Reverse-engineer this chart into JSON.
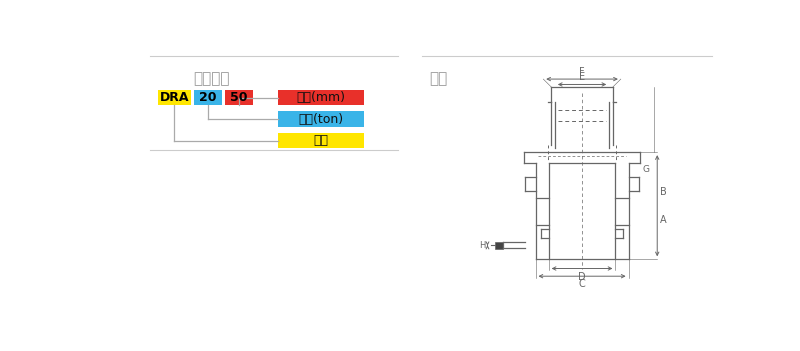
{
  "title_left": "型号说明",
  "title_right": "尺寸",
  "box_labels": [
    "DRA",
    "20",
    "50"
  ],
  "box_colors": [
    "#FFE600",
    "#3AB4E8",
    "#E8302A"
  ],
  "legend_labels": [
    "行程(mm)",
    "载荷(ton)",
    "型号"
  ],
  "legend_colors": [
    "#E8302A",
    "#3AB4E8",
    "#FFE600"
  ],
  "line_color": "#aaaaaa",
  "draw_color": "#666666",
  "title_color": "#999999",
  "bg_color": "#ffffff",
  "sep_line_color": "#cccccc"
}
